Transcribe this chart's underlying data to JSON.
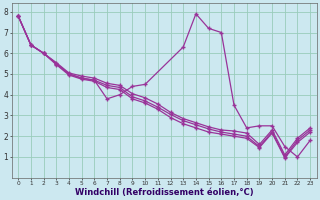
{
  "xlabel": "Windchill (Refroidissement éolien,°C)",
  "bg_color": "#cce8f0",
  "line_color": "#993399",
  "xlim": [
    -0.5,
    23.5
  ],
  "ylim": [
    0,
    8.4
  ],
  "xticks": [
    0,
    1,
    2,
    3,
    4,
    5,
    6,
    7,
    8,
    9,
    10,
    11,
    12,
    13,
    14,
    15,
    16,
    17,
    18,
    19,
    20,
    21,
    22,
    23
  ],
  "yticks": [
    1,
    2,
    3,
    4,
    5,
    6,
    7,
    8
  ],
  "grid_color": "#99ccbb",
  "series1_x": [
    0,
    1,
    2,
    3,
    4,
    5,
    6,
    7,
    8,
    9,
    10,
    13,
    14,
    15,
    16,
    17,
    18,
    19,
    20,
    21,
    22,
    23
  ],
  "series1_y": [
    7.8,
    6.4,
    6.0,
    5.5,
    5.0,
    4.8,
    4.7,
    3.8,
    4.0,
    4.4,
    4.5,
    6.3,
    7.9,
    7.2,
    7.0,
    3.5,
    2.4,
    2.5,
    2.5,
    1.5,
    1.0,
    1.8
  ],
  "series2_x": [
    0,
    1,
    2,
    3,
    4,
    5,
    6,
    7,
    8,
    9,
    10,
    11,
    12,
    13,
    14,
    15,
    16,
    17,
    18,
    19,
    20,
    21,
    22,
    23
  ],
  "series2_y": [
    7.8,
    6.4,
    6.0,
    5.5,
    5.0,
    4.8,
    4.7,
    4.45,
    4.35,
    3.9,
    3.7,
    3.4,
    3.05,
    2.75,
    2.55,
    2.35,
    2.2,
    2.1,
    2.0,
    1.5,
    2.2,
    1.0,
    1.8,
    2.3
  ],
  "series3_x": [
    0,
    1,
    2,
    3,
    4,
    5,
    6,
    7,
    8,
    9,
    10,
    11,
    12,
    13,
    14,
    15,
    16,
    17,
    18,
    19,
    20,
    21,
    22,
    23
  ],
  "series3_y": [
    7.8,
    6.4,
    6.0,
    5.55,
    5.05,
    4.9,
    4.8,
    4.55,
    4.45,
    4.05,
    3.85,
    3.55,
    3.15,
    2.85,
    2.65,
    2.45,
    2.3,
    2.25,
    2.15,
    1.6,
    2.3,
    1.1,
    1.9,
    2.4
  ],
  "series4_x": [
    0,
    1,
    2,
    3,
    4,
    5,
    6,
    7,
    8,
    9,
    10,
    11,
    12,
    13,
    14,
    15,
    16,
    17,
    18,
    19,
    20,
    21,
    22,
    23
  ],
  "series4_y": [
    7.8,
    6.4,
    6.0,
    5.45,
    4.95,
    4.75,
    4.65,
    4.35,
    4.25,
    3.8,
    3.6,
    3.3,
    2.9,
    2.6,
    2.4,
    2.2,
    2.1,
    2.0,
    1.9,
    1.45,
    2.15,
    0.95,
    1.7,
    2.2
  ]
}
